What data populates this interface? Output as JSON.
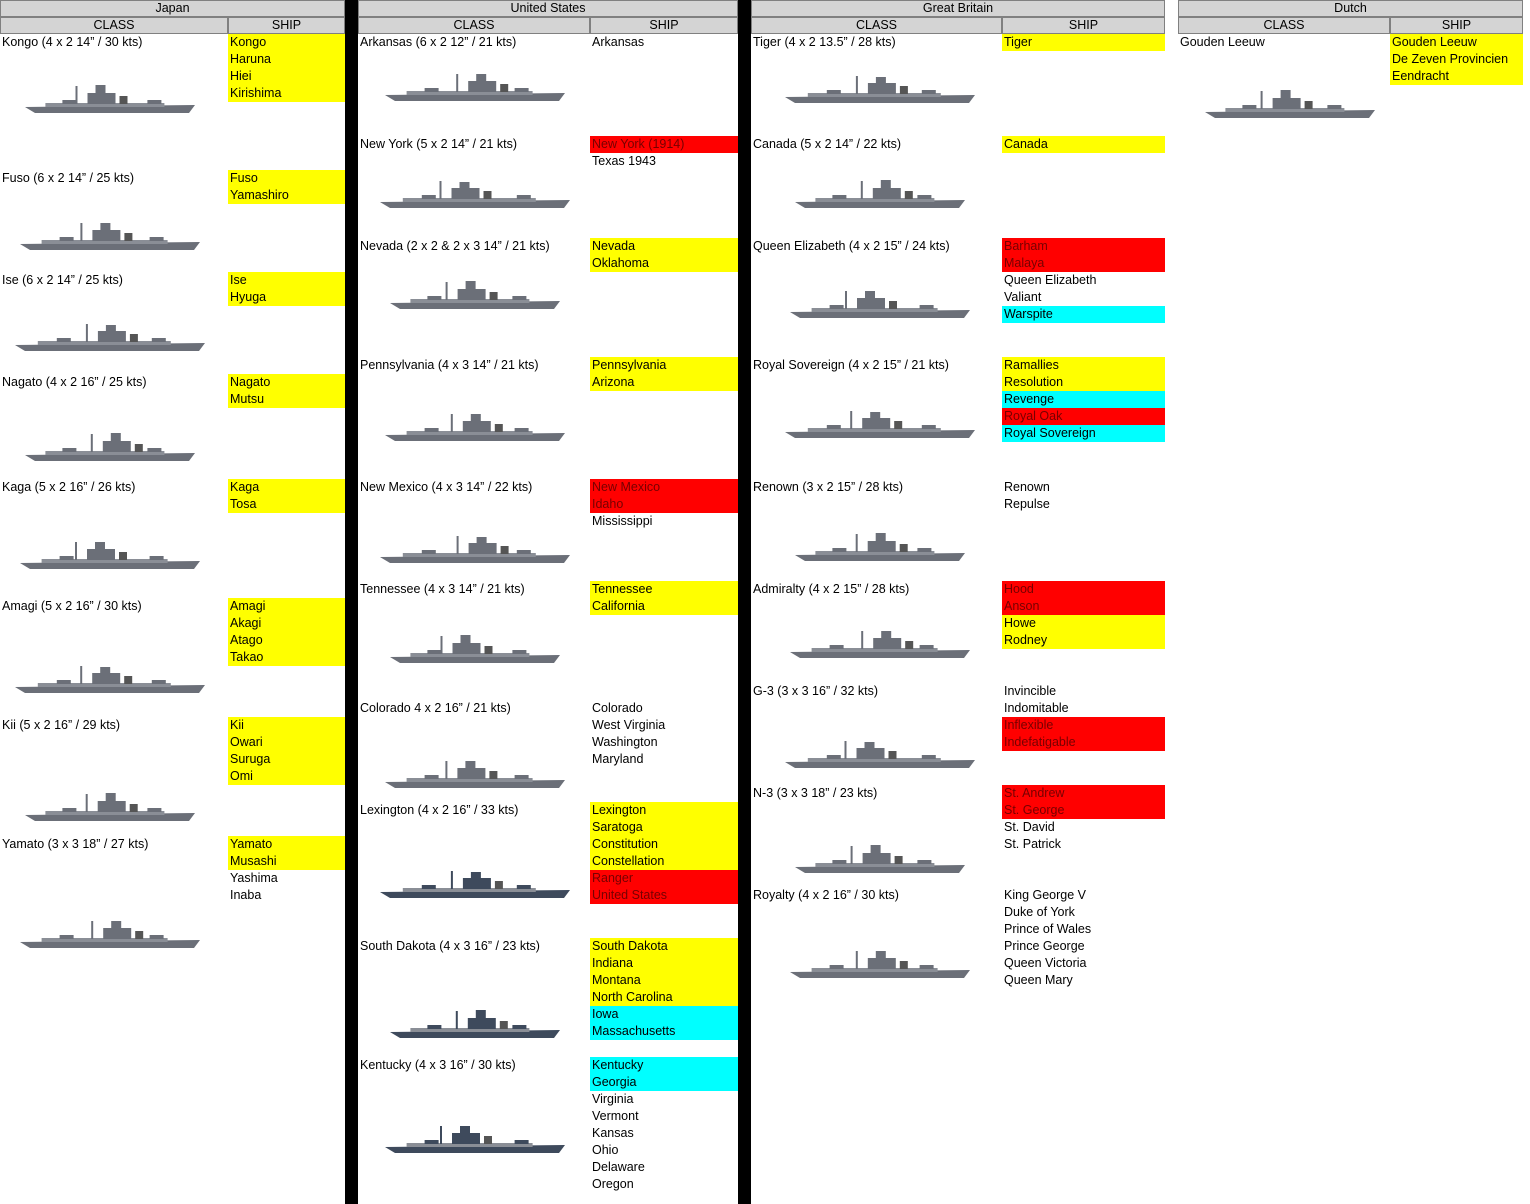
{
  "nations": [
    {
      "name": "Japan",
      "headers": {
        "class": "CLASS",
        "ship": "SHIP"
      },
      "classes": [
        {
          "label": "Kongo (4 x 2 14” / 30 kts)",
          "ships": [
            {
              "name": "Kongo",
              "color": "#ffff00"
            },
            {
              "name": "Haruna",
              "color": "#ffff00"
            },
            {
              "name": "Hiei",
              "color": "#ffff00"
            },
            {
              "name": "Kirishima",
              "color": "#ffff00"
            }
          ]
        },
        {
          "label": "Fuso (6 x 2 14” / 25 kts)",
          "ships": [
            {
              "name": "Fuso",
              "color": "#ffff00"
            },
            {
              "name": "Yamashiro",
              "color": "#ffff00"
            }
          ]
        },
        {
          "label": "Ise (6 x 2 14” / 25 kts)",
          "ships": [
            {
              "name": "Ise",
              "color": "#ffff00"
            },
            {
              "name": "Hyuga",
              "color": "#ffff00"
            }
          ]
        },
        {
          "label": "Nagato (4 x 2 16” / 25 kts)",
          "ships": [
            {
              "name": "Nagato",
              "color": "#ffff00"
            },
            {
              "name": "Mutsu",
              "color": "#ffff00"
            }
          ]
        },
        {
          "label": "Kaga (5 x 2 16” / 26 kts)",
          "ships": [
            {
              "name": "Kaga",
              "color": "#ffff00"
            },
            {
              "name": "Tosa",
              "color": "#ffff00"
            }
          ]
        },
        {
          "label": "Amagi (5 x 2 16” / 30 kts)",
          "ships": [
            {
              "name": "Amagi",
              "color": "#ffff00"
            },
            {
              "name": "Akagi",
              "color": "#ffff00"
            },
            {
              "name": "Atago",
              "color": "#ffff00"
            },
            {
              "name": "Takao",
              "color": "#ffff00"
            }
          ]
        },
        {
          "label": "Kii (5 x 2 16” / 29 kts)",
          "ships": [
            {
              "name": "Kii",
              "color": "#ffff00"
            },
            {
              "name": "Owari",
              "color": "#ffff00"
            },
            {
              "name": "Suruga",
              "color": "#ffff00"
            },
            {
              "name": "Omi",
              "color": "#ffff00"
            }
          ]
        },
        {
          "label": "Yamato (3 x 3 18” / 27 kts)",
          "ships": [
            {
              "name": "Yamato",
              "color": "#ffff00"
            },
            {
              "name": "Musashi",
              "color": "#ffff00"
            },
            {
              "name": "Yashima"
            },
            {
              "name": "Inaba"
            }
          ]
        }
      ]
    },
    {
      "name": "United States",
      "headers": {
        "class": "CLASS",
        "ship": "SHIP"
      },
      "classes": [
        {
          "label": "Arkansas (6 x 2 12” / 21 kts)",
          "ships": [
            {
              "name": "Arkansas"
            }
          ]
        },
        {
          "label": "New York (5 x 2 14” / 21 kts)",
          "ships": [
            {
              "name": "New York (1914)",
              "color": "#ff0000"
            },
            {
              "name": "Texas 1943"
            }
          ]
        },
        {
          "label": "Nevada (2 x 2 & 2 x 3 14” / 21 kts)",
          "ships": [
            {
              "name": "Nevada",
              "color": "#ffff00"
            },
            {
              "name": "Oklahoma",
              "color": "#ffff00"
            }
          ]
        },
        {
          "label": "Pennsylvania (4 x 3 14” / 21 kts)",
          "ships": [
            {
              "name": "Pennsylvania",
              "color": "#ffff00"
            },
            {
              "name": "Arizona",
              "color": "#ffff00"
            }
          ]
        },
        {
          "label": "New Mexico (4 x 3 14” / 22 kts)",
          "ships": [
            {
              "name": "New Mexico",
              "color": "#ff0000"
            },
            {
              "name": "Idaho",
              "color": "#ff0000"
            },
            {
              "name": "Mississippi"
            }
          ]
        },
        {
          "label": "Tennessee (4 x 3 14” / 21 kts)",
          "ships": [
            {
              "name": "Tennessee",
              "color": "#ffff00"
            },
            {
              "name": "California",
              "color": "#ffff00"
            }
          ]
        },
        {
          "label": "Colorado 4 x 2 16” / 21 kts)",
          "ships": [
            {
              "name": "Colorado"
            },
            {
              "name": "West Virginia"
            },
            {
              "name": "Washington"
            },
            {
              "name": "Maryland"
            }
          ]
        },
        {
          "label": "Lexington (4 x 2 16” / 33 kts)",
          "ships": [
            {
              "name": "Lexington",
              "color": "#ffff00"
            },
            {
              "name": "Saratoga",
              "color": "#ffff00"
            },
            {
              "name": "Constitution",
              "color": "#ffff00"
            },
            {
              "name": "Constellation",
              "color": "#ffff00"
            },
            {
              "name": "Ranger",
              "color": "#ff0000"
            },
            {
              "name": "United States",
              "color": "#ff0000"
            }
          ]
        },
        {
          "label": "South Dakota (4 x 3 16” / 23 kts)",
          "ships": [
            {
              "name": "South Dakota",
              "color": "#ffff00"
            },
            {
              "name": "Indiana",
              "color": "#ffff00"
            },
            {
              "name": "Montana",
              "color": "#ffff00"
            },
            {
              "name": "North Carolina",
              "color": "#ffff00"
            },
            {
              "name": "Iowa",
              "color": "#00ffff"
            },
            {
              "name": "Massachusetts",
              "color": "#00ffff"
            }
          ]
        },
        {
          "label": "Kentucky (4 x 3 16” / 30 kts)",
          "ships": [
            {
              "name": "Kentucky",
              "color": "#00ffff"
            },
            {
              "name": "Georgia",
              "color": "#00ffff"
            },
            {
              "name": "Virginia"
            },
            {
              "name": "Vermont"
            },
            {
              "name": "Kansas"
            },
            {
              "name": "Ohio"
            },
            {
              "name": "Delaware"
            },
            {
              "name": "Oregon"
            }
          ]
        }
      ]
    },
    {
      "name": "Great Britain",
      "headers": {
        "class": "CLASS",
        "ship": "SHIP"
      },
      "classes": [
        {
          "label": "Tiger (4 x 2 13.5” / 28 kts)",
          "ships": [
            {
              "name": "Tiger",
              "color": "#ffff00"
            }
          ]
        },
        {
          "label": "Canada (5 x 2 14” / 22 kts)",
          "ships": [
            {
              "name": "Canada",
              "color": "#ffff00"
            }
          ]
        },
        {
          "label": "Queen Elizabeth (4 x 2 15” / 24 kts)",
          "ships": [
            {
              "name": "Barham",
              "color": "#ff0000"
            },
            {
              "name": "Malaya",
              "color": "#ff0000"
            },
            {
              "name": "Queen Elizabeth"
            },
            {
              "name": "Valiant"
            },
            {
              "name": "Warspite",
              "color": "#00ffff"
            }
          ]
        },
        {
          "label": "Royal Sovereign (4 x 2 15” / 21 kts)",
          "ships": [
            {
              "name": "Ramallies",
              "color": "#ffff00"
            },
            {
              "name": "Resolution",
              "color": "#ffff00"
            },
            {
              "name": "Revenge",
              "color": "#00ffff"
            },
            {
              "name": "Royal Oak",
              "color": "#ff0000"
            },
            {
              "name": "Royal Sovereign",
              "color": "#00ffff"
            }
          ]
        },
        {
          "label": "Renown (3 x 2 15” / 28 kts)",
          "ships": [
            {
              "name": "Renown"
            },
            {
              "name": "Repulse"
            }
          ]
        },
        {
          "label": "Admiralty (4 x 2 15” / 28 kts)",
          "ships": [
            {
              "name": "Hood",
              "color": "#ff0000"
            },
            {
              "name": "Anson",
              "color": "#ff0000"
            },
            {
              "name": "Howe",
              "color": "#ffff00"
            },
            {
              "name": "Rodney",
              "color": "#ffff00"
            }
          ]
        },
        {
          "label": "G-3 (3 x 3 16” / 32 kts)",
          "ships": [
            {
              "name": "Invincible"
            },
            {
              "name": "Indomitable"
            },
            {
              "name": "Inflexible",
              "color": "#ff0000"
            },
            {
              "name": "Indefatigable",
              "color": "#ff0000"
            }
          ]
        },
        {
          "label": "N-3 (3 x 3 18” / 23 kts)",
          "ships": [
            {
              "name": "St. Andrew",
              "color": "#ff0000"
            },
            {
              "name": "St. George",
              "color": "#ff0000"
            },
            {
              "name": "St. David"
            },
            {
              "name": "St. Patrick"
            }
          ]
        },
        {
          "label": "Royalty (4 x 2 16” / 30 kts)",
          "ships": [
            {
              "name": "King George V"
            },
            {
              "name": "Duke of York"
            },
            {
              "name": "Prince of Wales"
            },
            {
              "name": "Prince George"
            },
            {
              "name": "Queen Victoria"
            },
            {
              "name": "Queen Mary"
            }
          ]
        }
      ]
    },
    {
      "name": "Dutch",
      "headers": {
        "class": "CLASS",
        "ship": "SHIP"
      },
      "classes": [
        {
          "label": "Gouden Leeuw",
          "ships": [
            {
              "name": "Gouden Leeuw",
              "color": "#ffff00"
            },
            {
              "name": "De Zeven Provincien",
              "color": "#ffff00"
            },
            {
              "name": "Eendracht",
              "color": "#ffff00"
            }
          ]
        }
      ]
    }
  ]
}
